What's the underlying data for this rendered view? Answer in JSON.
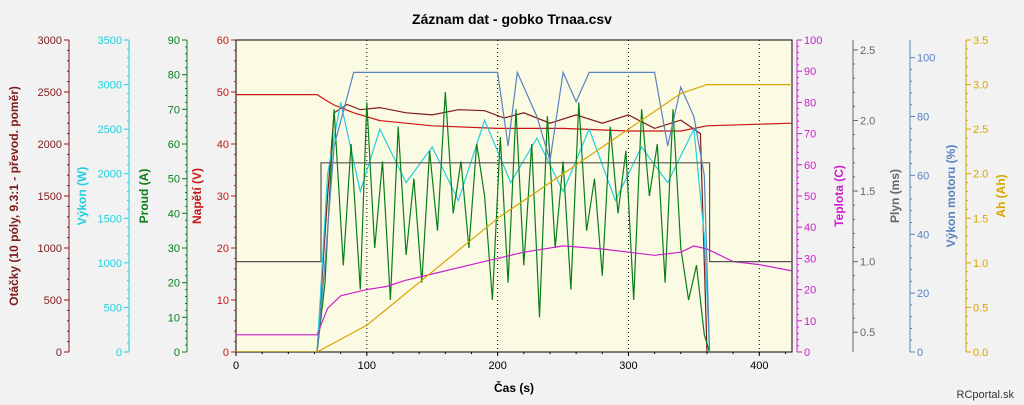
{
  "chart_data": {
    "type": "line",
    "title": "Záznam dat - gobko Trnaa.csv",
    "xlabel": "Čas (s)",
    "xlim": [
      0,
      425
    ],
    "xticks": [
      0,
      100,
      200,
      300,
      400
    ],
    "vgrid_dotted": [
      100,
      200,
      300,
      400
    ],
    "watermark": "RCportal.sk",
    "axes": [
      {
        "id": "otacky",
        "label": "Otáčky (10 póly, 9.3:1 - převod. poměr)",
        "color": "#7f1a1a",
        "side": "left",
        "range": [
          0,
          3000
        ],
        "ticks": [
          0,
          500,
          1000,
          1500,
          2000,
          2500,
          3000
        ]
      },
      {
        "id": "vykon",
        "label": "Výkon (W)",
        "color": "#1fd0e0",
        "side": "left",
        "range": [
          0,
          3500
        ],
        "ticks": [
          0,
          500,
          1000,
          1500,
          2000,
          2500,
          3000,
          3500
        ]
      },
      {
        "id": "proud",
        "label": "Proud (A)",
        "color": "#0a7d1a",
        "side": "left",
        "range": [
          0,
          90
        ],
        "ticks": [
          0,
          10,
          20,
          30,
          40,
          50,
          60,
          70,
          80,
          90
        ]
      },
      {
        "id": "napeti",
        "label": "Napětí (V)",
        "color": "#c81414",
        "side": "left",
        "range": [
          0,
          60
        ],
        "ticks": [
          0,
          10,
          20,
          30,
          40,
          50,
          60
        ]
      },
      {
        "id": "teplota",
        "label": "Teplota (C)",
        "color": "#cc1fcc",
        "side": "right",
        "range": [
          0,
          100
        ],
        "ticks": [
          0,
          10,
          20,
          30,
          40,
          50,
          60,
          70,
          80,
          90,
          100
        ]
      },
      {
        "id": "plyn",
        "label": "Plyn (ms)",
        "color": "#666666",
        "side": "right",
        "range": [
          0.36,
          2.57
        ],
        "ticks": [
          0.5,
          1.0,
          1.5,
          2.0,
          2.5
        ]
      },
      {
        "id": "vykon_motoru",
        "label": "Výkon motoru (%)",
        "color": "#5a82c0",
        "side": "right",
        "range": [
          0,
          106
        ],
        "ticks": [
          0,
          20,
          40,
          60,
          80,
          100
        ]
      },
      {
        "id": "ah",
        "label": "Ah (Ah)",
        "color": "#d9a400",
        "side": "right",
        "range": [
          0,
          3.5
        ],
        "ticks": [
          0.0,
          0.5,
          1.0,
          1.5,
          2.0,
          2.5,
          3.0,
          3.5
        ]
      }
    ],
    "series": [
      {
        "axis": "napeti",
        "color": "#c81414",
        "x": [
          0,
          62,
          68,
          75,
          90,
          110,
          150,
          200,
          250,
          300,
          340,
          360,
          400,
          425
        ],
        "y": [
          49.5,
          49.5,
          48.5,
          47.5,
          46,
          44.5,
          43.5,
          43,
          43,
          42.5,
          42.5,
          43.5,
          43.8,
          44
        ]
      },
      {
        "axis": "otacky",
        "color": "#7f1a1a",
        "x": [
          0,
          62,
          70,
          75,
          85,
          95,
          110,
          130,
          150,
          170,
          190,
          205,
          220,
          240,
          260,
          280,
          300,
          320,
          340,
          355,
          360
        ],
        "y": [
          0,
          0,
          1500,
          2300,
          2380,
          2330,
          2350,
          2300,
          2280,
          2330,
          2320,
          2250,
          2300,
          2200,
          2280,
          2200,
          2280,
          2150,
          2230,
          2100,
          0
        ]
      },
      {
        "axis": "vykon",
        "color": "#1fd0e0",
        "x": [
          0,
          62,
          70,
          80,
          95,
          110,
          130,
          150,
          170,
          190,
          210,
          230,
          250,
          270,
          290,
          310,
          330,
          350,
          358,
          362
        ],
        "y": [
          0,
          0,
          2000,
          2800,
          1800,
          2500,
          1900,
          2300,
          1700,
          2600,
          1900,
          2400,
          1800,
          2500,
          1700,
          2300,
          1900,
          2500,
          1300,
          0
        ]
      },
      {
        "axis": "proud",
        "color": "#0a7d1a",
        "x": [
          0,
          62,
          68,
          75,
          82,
          88,
          95,
          100,
          106,
          112,
          118,
          124,
          130,
          136,
          142,
          148,
          154,
          160,
          166,
          172,
          178,
          184,
          190,
          196,
          202,
          208,
          214,
          220,
          226,
          232,
          238,
          244,
          250,
          256,
          262,
          268,
          274,
          280,
          286,
          292,
          298,
          304,
          310,
          316,
          322,
          328,
          334,
          340,
          346,
          352,
          358,
          362
        ],
        "y": [
          0,
          0,
          20,
          70,
          25,
          60,
          18,
          72,
          30,
          55,
          15,
          65,
          28,
          50,
          20,
          58,
          35,
          75,
          40,
          55,
          30,
          60,
          45,
          15,
          62,
          20,
          70,
          25,
          60,
          10,
          68,
          30,
          55,
          18,
          72,
          35,
          50,
          22,
          65,
          40,
          58,
          15,
          70,
          45,
          60,
          20,
          70,
          30,
          15,
          25,
          5,
          0
        ]
      },
      {
        "axis": "teplota",
        "color": "#cc1fcc",
        "x": [
          0,
          62,
          70,
          80,
          100,
          115,
          130,
          150,
          180,
          200,
          220,
          250,
          280,
          320,
          340,
          350,
          360,
          380,
          400,
          425
        ],
        "y": [
          5.5,
          5.5,
          14,
          18,
          20,
          21,
          23,
          25,
          28,
          30,
          32,
          34,
          33,
          31,
          32,
          34,
          33,
          29,
          28,
          26
        ]
      },
      {
        "axis": "plyn",
        "color": "#555555",
        "x": [
          0,
          65,
          65,
          210,
          210,
          350,
          350,
          362,
          362,
          425
        ],
        "y": [
          1.0,
          1.0,
          1.7,
          1.7,
          1.7,
          1.7,
          1.7,
          1.7,
          1.0,
          1.0
        ]
      },
      {
        "axis": "vykon_motoru",
        "color": "#5a82c0",
        "x": [
          0,
          62,
          68,
          75,
          90,
          100,
          150,
          200,
          208,
          215,
          230,
          240,
          250,
          260,
          270,
          290,
          320,
          330,
          340,
          350,
          358,
          362
        ],
        "y": [
          0,
          0,
          30,
          70,
          95,
          95,
          95,
          95,
          70,
          95,
          80,
          65,
          95,
          85,
          95,
          95,
          95,
          70,
          90,
          80,
          60,
          0
        ]
      },
      {
        "axis": "ah",
        "color": "#d9a400",
        "x": [
          0,
          62,
          100,
          150,
          200,
          250,
          300,
          340,
          360,
          425
        ],
        "y": [
          0,
          0,
          0.3,
          0.9,
          1.5,
          2.0,
          2.5,
          2.9,
          3.0,
          3.0
        ]
      }
    ]
  }
}
